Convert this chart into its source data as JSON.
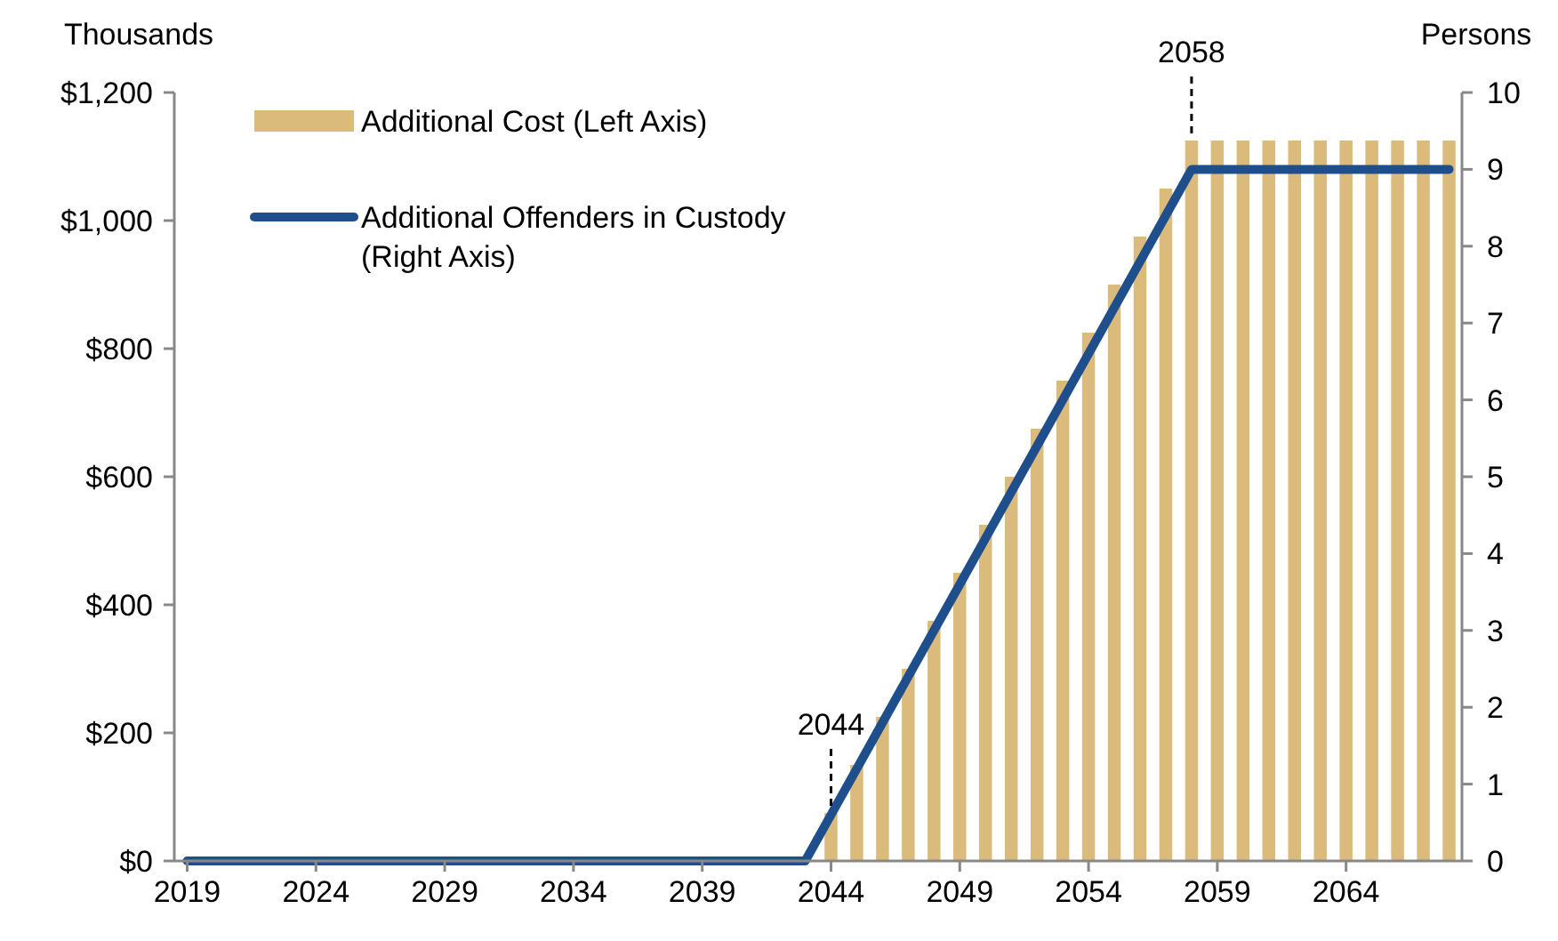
{
  "chart_data": {
    "type": "bar",
    "ylabel": "Thousands",
    "y2label": "Persons",
    "x": [
      2019,
      2020,
      2021,
      2022,
      2023,
      2024,
      2025,
      2026,
      2027,
      2028,
      2029,
      2030,
      2031,
      2032,
      2033,
      2034,
      2035,
      2036,
      2037,
      2038,
      2039,
      2040,
      2041,
      2042,
      2043,
      2044,
      2045,
      2046,
      2047,
      2048,
      2049,
      2050,
      2051,
      2052,
      2053,
      2054,
      2055,
      2056,
      2057,
      2058,
      2059,
      2060,
      2061,
      2062,
      2063,
      2064,
      2065,
      2066,
      2067,
      2068
    ],
    "series": [
      {
        "name": "Additional Cost (Left Axis)",
        "color": "#dbbb7b",
        "values": [
          0,
          0,
          0,
          0,
          0,
          0,
          0,
          0,
          0,
          0,
          0,
          0,
          0,
          0,
          0,
          0,
          0,
          0,
          0,
          0,
          0,
          0,
          0,
          0,
          0,
          75,
          150,
          225,
          300,
          375,
          450,
          525,
          600,
          675,
          750,
          825,
          900,
          975,
          1050,
          1125,
          1125,
          1125,
          1125,
          1125,
          1125,
          1125,
          1125,
          1125,
          1125,
          1125
        ]
      },
      {
        "name": "Additional Offenders in Custody\n(Right Axis)",
        "type": "line",
        "axis": "y2",
        "color": "#1f4e8c",
        "values": [
          0,
          0,
          0,
          0,
          0,
          0,
          0,
          0,
          0,
          0,
          0,
          0,
          0,
          0,
          0,
          0,
          0,
          0,
          0,
          0,
          0,
          0,
          0,
          0,
          0,
          0.6,
          1.2,
          1.8,
          2.4,
          3.0,
          3.6,
          4.2,
          4.8,
          5.4,
          6.0,
          6.6,
          7.2,
          7.8,
          8.4,
          9,
          9,
          9,
          9,
          9,
          9,
          9,
          9,
          9,
          9,
          9
        ]
      }
    ],
    "xlim": [
      2018.5,
      2068.5
    ],
    "xticks": [
      2019,
      2024,
      2029,
      2034,
      2039,
      2044,
      2049,
      2054,
      2059,
      2064
    ],
    "ylim": [
      0,
      1200
    ],
    "yticks": [
      {
        "value": 0,
        "label": "$0"
      },
      {
        "value": 200,
        "label": "$200"
      },
      {
        "value": 400,
        "label": "$400"
      },
      {
        "value": 600,
        "label": "$600"
      },
      {
        "value": 800,
        "label": "$800"
      },
      {
        "value": 1000,
        "label": "$1,000"
      },
      {
        "value": 1200,
        "label": "$1,200"
      }
    ],
    "y2lim": [
      0,
      10
    ],
    "y2ticks": [
      0,
      1,
      2,
      3,
      4,
      5,
      6,
      7,
      8,
      9,
      10
    ],
    "annotations": [
      {
        "text": "2044",
        "x": 2044,
        "y": 75
      },
      {
        "text": "2058",
        "x": 2058,
        "y": 1125
      }
    ],
    "legend": "top left",
    "grid": false,
    "line_style": "solid",
    "marker": "none"
  }
}
